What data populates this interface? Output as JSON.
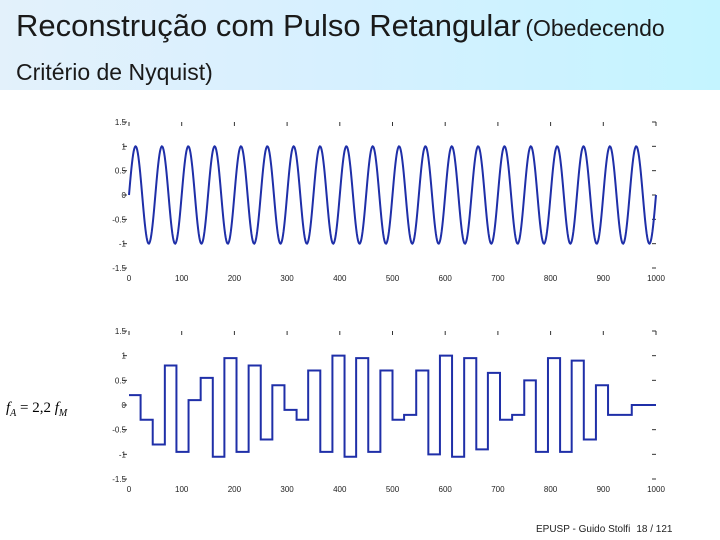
{
  "slide": {
    "title_main": "Reconstrução com Pulso Retangular",
    "title_paren": "(Obedecendo",
    "title_line2": "Critério de Nyquist)",
    "formula": {
      "f": "f",
      "sub_a": "A",
      "eq": " = 2,2 ",
      "sub_m": "M"
    },
    "footer": {
      "source": "EPUSP - Guido Stolfi",
      "page": "18 / 121"
    }
  },
  "colors": {
    "signal": "#1f2fa8",
    "axis": "#333333"
  },
  "chart_data": [
    {
      "type": "line",
      "title": "",
      "xlabel": "",
      "ylabel": "",
      "xlim": [
        0,
        1000
      ],
      "ylim": [
        -1.5,
        1.5
      ],
      "x_ticks": [
        0,
        100,
        200,
        300,
        400,
        500,
        600,
        700,
        800,
        900,
        1000
      ],
      "x_tick_labels": [
        "0",
        "100",
        "200",
        "300",
        "400",
        "500",
        "600",
        "700",
        "800",
        "900",
        "1000"
      ],
      "y_ticks": [
        1.5,
        1,
        0.5,
        0,
        -0.5,
        -1,
        -1.5
      ],
      "y_tick_labels": [
        "1.5",
        "1",
        "0.5",
        "0",
        "-0.5",
        "-1",
        "-1.5"
      ],
      "series": [
        {
          "kind": "sine",
          "amplitude": 1,
          "cycles": 20,
          "x_start": 0,
          "x_end": 1000,
          "samples": 900
        }
      ]
    },
    {
      "type": "line",
      "title": "",
      "xlabel": "",
      "ylabel": "",
      "xlim": [
        0,
        1000
      ],
      "ylim": [
        -1.5,
        1.5
      ],
      "x_ticks": [
        0,
        100,
        200,
        300,
        400,
        500,
        600,
        700,
        800,
        900,
        1000
      ],
      "x_tick_labels": [
        "0",
        "100",
        "200",
        "300",
        "400",
        "500",
        "600",
        "700",
        "800",
        "900",
        "1000"
      ],
      "y_ticks": [
        1.5,
        1,
        0.5,
        0,
        -0.5,
        -1,
        -1.5
      ],
      "y_tick_labels": [
        "1.5",
        "1",
        "0.5",
        "0",
        "-0.5",
        "-1",
        "-1.5"
      ],
      "series": [
        {
          "kind": "step",
          "step_x": [
            0,
            22,
            45,
            68,
            90,
            113,
            136,
            159,
            181,
            204,
            227,
            250,
            272,
            295,
            318,
            340,
            363,
            386,
            409,
            431,
            454,
            477,
            500,
            522,
            545,
            568,
            590,
            613,
            636,
            659,
            681,
            704,
            727,
            750,
            772,
            795,
            818,
            840,
            863,
            886,
            909,
            931,
            954,
            977,
            1000
          ],
          "step_y": [
            0.2,
            -0.3,
            -0.8,
            0.8,
            -0.95,
            0.1,
            0.55,
            -1.05,
            0.95,
            -0.95,
            0.8,
            -0.7,
            0.4,
            -0.1,
            -0.3,
            0.7,
            -0.95,
            1.0,
            -1.05,
            0.95,
            -0.95,
            0.7,
            -0.3,
            -0.2,
            0.7,
            -1.0,
            1.0,
            -1.05,
            0.95,
            -0.9,
            0.65,
            -0.3,
            -0.2,
            0.5,
            -0.95,
            0.95,
            -0.95,
            0.9,
            -0.7,
            0.4,
            -0.2,
            -0.2,
            0.0,
            0.0
          ]
        }
      ]
    }
  ]
}
